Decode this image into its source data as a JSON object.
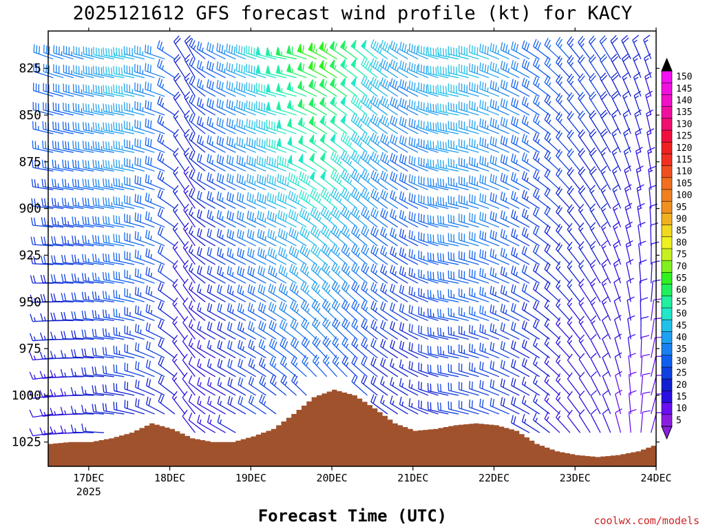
{
  "chart_data": {
    "type": "wind-barb-profile",
    "title": "2025121612 GFS forecast wind profile (kt) for KACY",
    "xlabel": "Forecast Time (UTC)",
    "ylabel": "",
    "credit": "coolwx.com/models",
    "y_axis": {
      "unit": "hPa",
      "ticks": [
        825,
        850,
        875,
        900,
        925,
        950,
        975,
        1000,
        1025
      ],
      "range": [
        805,
        1038
      ],
      "inverted": false
    },
    "x_axis": {
      "ticks": [
        {
          "label": "17DEC",
          "sublabel": "2025",
          "hours": 12
        },
        {
          "label": "18DEC",
          "sublabel": "",
          "hours": 36
        },
        {
          "label": "19DEC",
          "sublabel": "",
          "hours": 60
        },
        {
          "label": "20DEC",
          "sublabel": "",
          "hours": 84
        },
        {
          "label": "21DEC",
          "sublabel": "",
          "hours": 108
        },
        {
          "label": "22DEC",
          "sublabel": "",
          "hours": 132
        },
        {
          "label": "23DEC",
          "sublabel": "",
          "hours": 156
        },
        {
          "label": "24DEC",
          "sublabel": "",
          "hours": 180
        }
      ],
      "range_hours": [
        0,
        180
      ],
      "start_time": "2025121612"
    },
    "colorbar": {
      "min": 5,
      "max": 150,
      "step": 5,
      "labels": [
        150,
        145,
        140,
        135,
        130,
        125,
        120,
        115,
        110,
        105,
        100,
        95,
        90,
        85,
        80,
        75,
        70,
        65,
        60,
        55,
        50,
        45,
        40,
        35,
        30,
        25,
        20,
        15,
        10,
        5
      ]
    },
    "surface_pressure": {
      "hours": [
        0,
        6,
        12,
        18,
        24,
        30,
        36,
        42,
        48,
        54,
        60,
        66,
        72,
        78,
        84,
        90,
        96,
        102,
        108,
        114,
        120,
        126,
        132,
        138,
        144,
        150,
        156,
        162,
        168,
        174,
        180
      ],
      "values": [
        1026,
        1025,
        1025,
        1023,
        1020,
        1015,
        1018,
        1023,
        1025,
        1025,
        1022,
        1018,
        1010,
        1001,
        997,
        1000,
        1007,
        1015,
        1019,
        1018,
        1016,
        1015,
        1016,
        1019,
        1026,
        1030,
        1032,
        1033,
        1032,
        1030,
        1026
      ]
    },
    "wind_barbs": {
      "levels": [
        820,
        830,
        840,
        850,
        860,
        870,
        880,
        890,
        900,
        910,
        920,
        930,
        940,
        950,
        960,
        970,
        980,
        990,
        1000,
        1010,
        1020
      ],
      "key_times_hours": [
        0,
        12,
        24,
        36,
        42,
        48,
        60,
        72,
        84,
        96,
        108,
        120,
        132,
        144,
        156,
        168,
        180
      ],
      "speed_kt_at_level_820": [
        30,
        35,
        45,
        30,
        15,
        25,
        40,
        55,
        65,
        50,
        35,
        45,
        40,
        30,
        25,
        20,
        15
      ],
      "speed_kt_at_level_1000": [
        12,
        15,
        20,
        20,
        10,
        12,
        20,
        25,
        25,
        20,
        15,
        20,
        22,
        18,
        12,
        10,
        8
      ],
      "direction_deg_at_level_820": [
        290,
        285,
        280,
        290,
        340,
        300,
        290,
        280,
        300,
        310,
        300,
        280,
        290,
        300,
        320,
        330,
        340
      ],
      "direction_deg_at_level_1000": [
        260,
        270,
        280,
        300,
        330,
        300,
        300,
        310,
        320,
        310,
        300,
        280,
        290,
        300,
        320,
        340,
        20
      ],
      "interval_hours": 3
    }
  }
}
